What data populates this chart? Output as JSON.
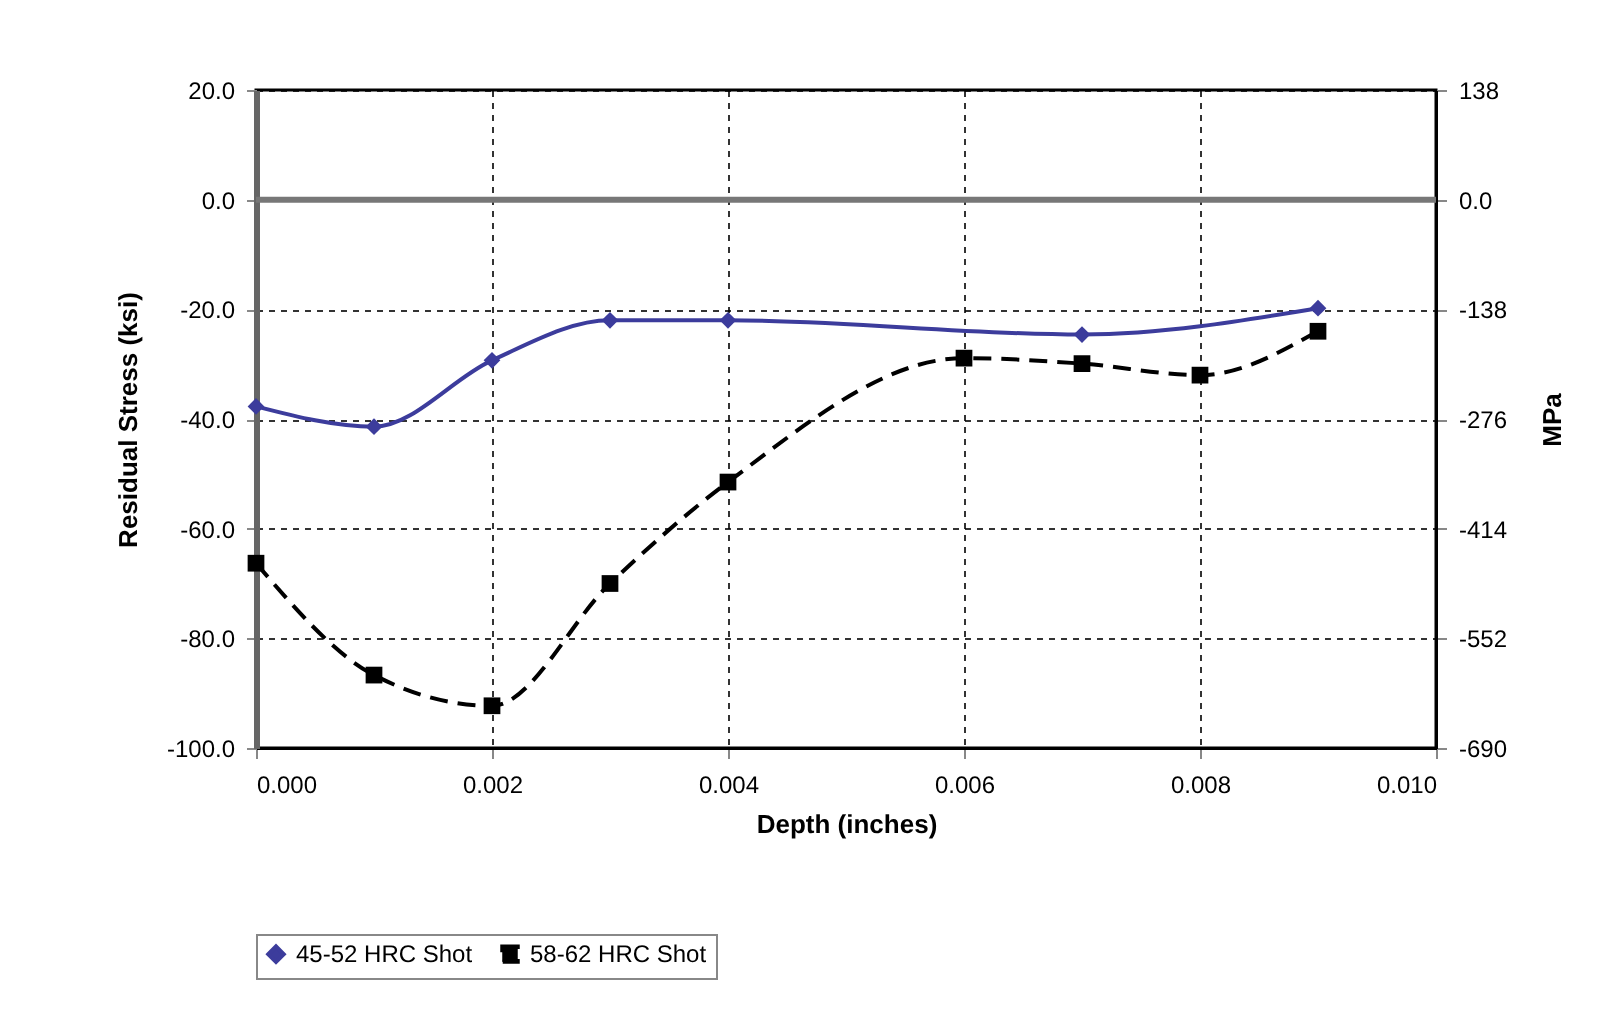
{
  "chart_data": {
    "type": "line",
    "xlabel": "Depth (inches)",
    "ylabel": "Residual Stress (ksi)",
    "y2label": "MPa",
    "xlim": [
      0,
      0.01
    ],
    "xticks": [
      {
        "value": 0,
        "label": "0.000"
      },
      {
        "value": 0.002,
        "label": "0.002"
      },
      {
        "value": 0.004,
        "label": "0.004"
      },
      {
        "value": 0.006,
        "label": "0.006"
      },
      {
        "value": 0.008,
        "label": "0.008"
      },
      {
        "value": 0.01,
        "label": "0.010"
      }
    ],
    "ylim": [
      -100,
      20
    ],
    "yticks": [
      {
        "value": -100,
        "label": "-100.0"
      },
      {
        "value": -80,
        "label": "-80.0"
      },
      {
        "value": -60,
        "label": "-60.0"
      },
      {
        "value": -40,
        "label": "-40.0"
      },
      {
        "value": -20,
        "label": "-20.0"
      },
      {
        "value": 0,
        "label": "0.0"
      },
      {
        "value": 20,
        "label": "20.0"
      }
    ],
    "y2lim": [
      -690,
      138
    ],
    "y2ticks": [
      -690,
      -552,
      -414,
      -276,
      -138,
      {
        "value": 0,
        "label": "0.0"
      },
      138
    ],
    "grid": true,
    "legend": "bottom",
    "ref_lines": [
      {
        "axis": "y",
        "value": 0,
        "color": "#777777",
        "line_style": "solid"
      }
    ],
    "series": [
      {
        "name": "45-52 HRC Shot",
        "color": "#3c3c9c",
        "marker": "diamond",
        "line_style": "solid",
        "x": [
          0,
          0.001,
          0.002,
          0.003,
          0.004,
          0.007,
          0.009
        ],
        "values": [
          -37.7,
          -41.4,
          -29.3,
          -22,
          -22,
          -24.6,
          -19.8
        ]
      },
      {
        "name": "58-62 HRC Shot",
        "color": "#000000",
        "marker": "square",
        "line_style": "dashed",
        "x": [
          0,
          0.001,
          0.002,
          0.003,
          0.004,
          0.006,
          0.007,
          0.008,
          0.009
        ],
        "values": [
          -66.3,
          -86.7,
          -92.3,
          -70,
          -51.5,
          -28.9,
          -29.9,
          -32,
          -24
        ]
      }
    ]
  }
}
